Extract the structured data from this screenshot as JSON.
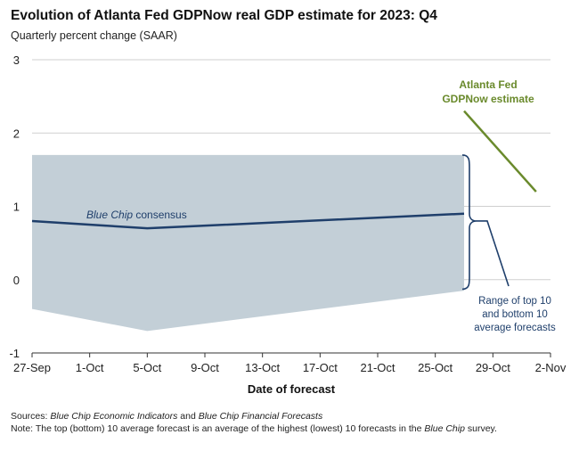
{
  "title": "Evolution of Atlanta Fed GDPNow real GDP estimate for 2023: Q4",
  "subtitle": "Quarterly percent change (SAAR)",
  "chart_data": {
    "type": "line",
    "xlabel": "Date of forecast",
    "ylabel": "",
    "x_ticks": [
      "27-Sep",
      "1-Oct",
      "5-Oct",
      "9-Oct",
      "13-Oct",
      "17-Oct",
      "21-Oct",
      "25-Oct",
      "29-Oct",
      "2-Nov"
    ],
    "y_ticks": [
      "3",
      "2",
      "1",
      "0",
      "-1"
    ],
    "ylim": [
      -1,
      3
    ],
    "xlim": [
      "2023-09-27",
      "2023-11-02"
    ],
    "grid": "horizontal",
    "range_band": {
      "label": "Range of top 10 and bottom 10 average forecasts",
      "upper": [
        {
          "x": "2023-09-27",
          "y": 1.7
        },
        {
          "x": "2023-10-27",
          "y": 1.7
        }
      ],
      "lower": [
        {
          "x": "2023-09-27",
          "y": -0.4
        },
        {
          "x": "2023-10-05",
          "y": -0.7
        },
        {
          "x": "2023-10-27",
          "y": -0.15
        }
      ],
      "color": "#c3cfd7"
    },
    "series": [
      {
        "name": "Blue Chip consensus",
        "color": "#1f3f6b",
        "points": [
          {
            "x": "2023-09-27",
            "y": 0.8
          },
          {
            "x": "2023-10-05",
            "y": 0.7
          },
          {
            "x": "2023-10-27",
            "y": 0.9
          }
        ]
      },
      {
        "name": "Atlanta Fed GDPNow estimate",
        "color": "#6a8a2c",
        "points": [
          {
            "x": "2023-10-27",
            "y": 2.3
          },
          {
            "x": "2023-11-01",
            "y": 1.2
          }
        ]
      }
    ]
  },
  "annotations": {
    "gdpnow_line1": "Atlanta Fed",
    "gdpnow_line2": "GDPNow estimate",
    "bluechip_prefix": "Blue Chip",
    "bluechip_suffix": " consensus",
    "range_line1": "Range of top 10",
    "range_line2": "and bottom 10",
    "range_line3": "average forecasts"
  },
  "footer": {
    "sources_label": "Sources: ",
    "sources_src1": "Blue Chip Economic Indicators",
    "sources_and": " and ",
    "sources_src2": "Blue Chip Financial Forecasts",
    "note_label": "Note: ",
    "note_text": "The top (bottom) 10 average forecast is an average of the highest (lowest) 10 forecasts in the ",
    "note_italic": "Blue Chip",
    "note_end": " survey."
  },
  "colors": {
    "navy": "#1f3f6b",
    "green": "#6a8a2c",
    "band": "#c3cfd7",
    "grid": "#cfcfcf"
  }
}
